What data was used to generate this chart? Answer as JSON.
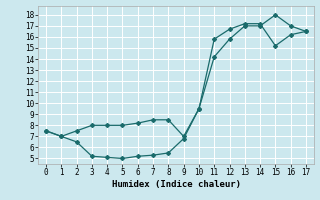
{
  "xlabel": "Humidex (Indice chaleur)",
  "ylabel": "",
  "bg_color": "#cce8ee",
  "grid_color": "#ffffff",
  "line_color": "#1a6b6b",
  "xlim": [
    -0.5,
    17.5
  ],
  "ylim": [
    4.5,
    18.8
  ],
  "xticks": [
    0,
    1,
    2,
    3,
    4,
    5,
    6,
    7,
    8,
    9,
    10,
    11,
    12,
    13,
    14,
    15,
    16,
    17
  ],
  "yticks": [
    5,
    6,
    7,
    8,
    9,
    10,
    11,
    12,
    13,
    14,
    15,
    16,
    17,
    18
  ],
  "series1_x": [
    0,
    1,
    2,
    3,
    4,
    5,
    6,
    7,
    8,
    9,
    10,
    11,
    12,
    13,
    14,
    15,
    16,
    17
  ],
  "series1_y": [
    7.5,
    7.0,
    6.5,
    5.2,
    5.1,
    5.0,
    5.2,
    5.3,
    5.5,
    6.8,
    9.5,
    15.8,
    16.7,
    17.2,
    17.2,
    15.2,
    16.2,
    16.5
  ],
  "series2_x": [
    0,
    1,
    2,
    3,
    4,
    5,
    6,
    7,
    8,
    9,
    10,
    11,
    12,
    13,
    14,
    15,
    16,
    17
  ],
  "series2_y": [
    7.5,
    7.0,
    7.5,
    8.0,
    8.0,
    8.0,
    8.2,
    8.5,
    8.5,
    7.0,
    9.5,
    14.2,
    15.8,
    17.0,
    17.0,
    18.0,
    17.0,
    16.5
  ]
}
